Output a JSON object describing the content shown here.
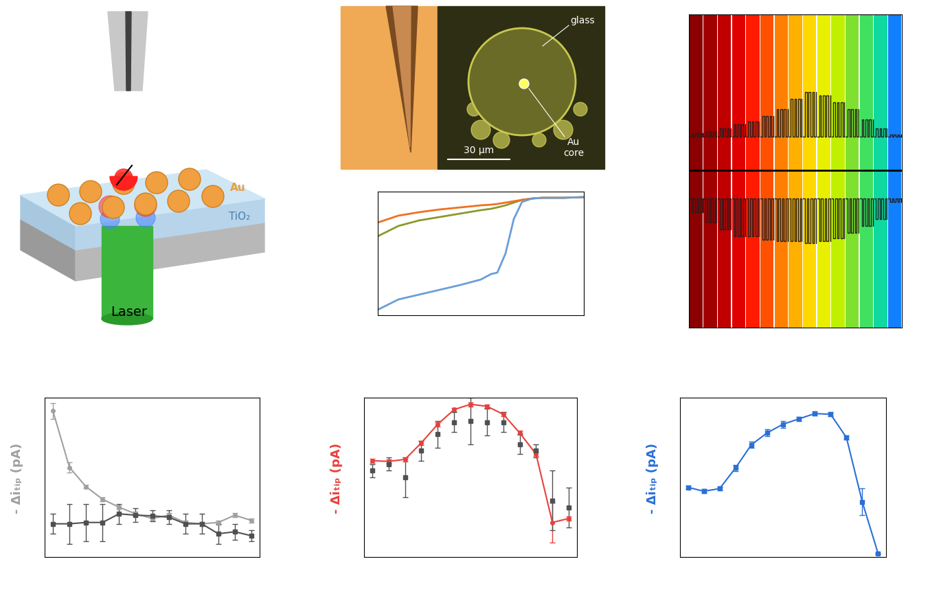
{
  "schematic": {
    "labels": {
      "particle": "Au",
      "film": "TiO₂",
      "beam": "Laser"
    }
  },
  "micrograph": {
    "labels": {
      "glass": "glass",
      "core": "Au\ncore",
      "scale": "30 μm"
    }
  },
  "chart_data": [
    {
      "type": "line",
      "tick_labels": false,
      "xlim": [
        0,
        100
      ],
      "ylim": [
        0,
        180
      ],
      "xticks": [],
      "yticks": [],
      "x": [
        0,
        10,
        20,
        30,
        40,
        50,
        55,
        58,
        62,
        66,
        70,
        75,
        80,
        90,
        100
      ],
      "series": [
        {
          "color": "#8a9a2a",
          "marker": "none",
          "line_style": "solid",
          "values": [
            115,
            130,
            138,
            143,
            148,
            153,
            155,
            157,
            160,
            164,
            168,
            170,
            171,
            171,
            172
          ]
        },
        {
          "color": "#f07020",
          "marker": "none",
          "line_style": "solid",
          "values": [
            135,
            145,
            150,
            154,
            157,
            160,
            161,
            162,
            164,
            166,
            168,
            170,
            171,
            171,
            172
          ]
        },
        {
          "color": "#6a9ed8",
          "marker": "none",
          "line_style": "solid",
          "values": [
            8,
            23,
            30,
            37,
            44,
            52,
            60,
            62,
            90,
            140,
            165,
            170,
            171,
            171,
            172
          ]
        }
      ]
    },
    {
      "type": "trace",
      "tick_labels": false,
      "xlim": [
        0,
        15
      ],
      "ylim": [
        0,
        456
      ],
      "xticks": [],
      "yticks": [],
      "band_colors": [
        "#8b0000",
        "#a00000",
        "#c00000",
        "#e00000",
        "#ff1a00",
        "#ff5000",
        "#ff8000",
        "#ffb000",
        "#ffd800",
        "#e8f000",
        "#c0f000",
        "#80e030",
        "#40e060",
        "#10d8a0",
        "#1080ff"
      ],
      "divider": 229,
      "series": [
        {
          "color": "#202020",
          "baseline": 278,
          "amplitudes": [
            5,
            8,
            12,
            18,
            22,
            30,
            40,
            55,
            65,
            60,
            50,
            40,
            25,
            12,
            3
          ]
        },
        {
          "color": "#202020",
          "baseline": 188,
          "amplitudes": [
            -20,
            -35,
            -45,
            -55,
            -55,
            -60,
            -62,
            -62,
            -65,
            -62,
            -58,
            -50,
            -40,
            -30,
            -5
          ]
        }
      ]
    },
    {
      "type": "line",
      "tick_labels": false,
      "y_label": "- Δiₜᵢₚ (pA)",
      "xlim": [
        0.5,
        13.5
      ],
      "ylim": [
        0,
        240
      ],
      "xticks": [],
      "yticks": [],
      "x": [
        1,
        2,
        3,
        4,
        5,
        6,
        7,
        8,
        9,
        10,
        11,
        12,
        13
      ],
      "series": [
        {
          "color": "#a0a0a0",
          "marker": "o",
          "line_style": "solid",
          "values": [
            220,
            135,
            106,
            87,
            75,
            65,
            58,
            63,
            52,
            50,
            52,
            63,
            55
          ],
          "errors": [
            12,
            8,
            3,
            3,
            3,
            3,
            3,
            3,
            3,
            3,
            3,
            3,
            3
          ]
        },
        {
          "color": "#505050",
          "marker": "s",
          "line_style": "solid",
          "values": [
            50,
            50,
            52,
            52,
            65,
            63,
            62,
            60,
            50,
            50,
            35,
            38,
            32
          ],
          "errors": [
            15,
            30,
            28,
            28,
            15,
            10,
            8,
            10,
            15,
            15,
            15,
            12,
            8
          ]
        }
      ]
    },
    {
      "type": "line",
      "tick_labels": false,
      "y_label": "- Δiₜᵢₚ (pA)",
      "xlim": [
        0.5,
        13.5
      ],
      "ylim": [
        0,
        240
      ],
      "xticks": [],
      "yticks": [],
      "x": [
        1,
        2,
        3,
        4,
        5,
        6,
        7,
        8,
        9,
        10,
        11,
        12,
        13
      ],
      "series": [
        {
          "color": "#e8403c",
          "marker": "o",
          "line_style": "solid",
          "values": [
            145,
            144,
            147,
            172,
            200,
            222,
            230,
            227,
            215,
            187,
            155,
            52,
            58
          ],
          "errors": [
            3,
            3,
            3,
            3,
            3,
            3,
            3,
            3,
            3,
            3,
            3,
            30,
            3
          ]
        },
        {
          "color": "#505050",
          "marker": "s",
          "line_style": "none",
          "values": [
            130,
            140,
            120,
            160,
            185,
            203,
            205,
            203,
            203,
            170,
            160,
            85,
            75
          ],
          "errors": [
            10,
            10,
            30,
            15,
            20,
            15,
            35,
            20,
            15,
            15,
            10,
            45,
            30
          ]
        }
      ]
    },
    {
      "type": "line",
      "tick_labels": false,
      "y_label": "- Δiₜᵢₚ (pA)",
      "xlim": [
        0.5,
        13.5
      ],
      "ylim": [
        0,
        240
      ],
      "xticks": [],
      "yticks": [],
      "x": [
        1,
        2,
        3,
        4,
        5,
        6,
        7,
        8,
        9,
        10,
        11,
        12,
        13
      ],
      "series": [
        {
          "color": "#2a6fd6",
          "marker": "s",
          "line_style": "solid",
          "values": [
            105,
            99,
            103,
            134,
            169,
            187,
            200,
            208,
            216,
            215,
            180,
            83,
            5
          ],
          "errors": [
            3,
            3,
            3,
            5,
            5,
            5,
            5,
            3,
            3,
            3,
            3,
            20,
            0
          ]
        }
      ]
    }
  ]
}
